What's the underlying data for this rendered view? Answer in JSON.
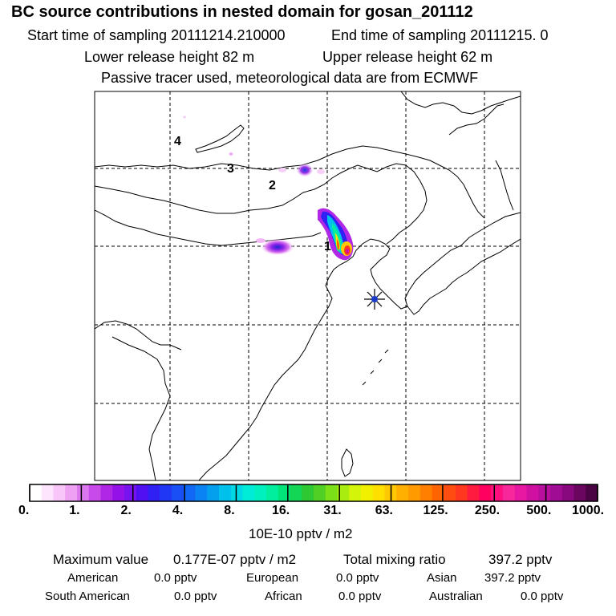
{
  "header": {
    "title": "BC  source contributions in nested domain for gosan_201112",
    "start_label": "Start time of sampling 20111214.210000",
    "end_label": "End time of sampling 20111215.     0",
    "lower_label": "Lower release height   82 m",
    "upper_label": "Upper release height   62 m",
    "tracer_label": "Passive tracer used, meteorological data are from ECMWF"
  },
  "map": {
    "trajectory_labels": [
      "4",
      "3",
      "2",
      "1"
    ],
    "receptor_marker": "star-marker",
    "colors": {
      "coast": "#000000",
      "grid": "#000000",
      "receptor": "#1a3cc8"
    }
  },
  "colorbar": {
    "tick_labels": [
      "0.",
      "1.",
      "2.",
      "4.",
      "8.",
      "16.",
      "31.",
      "63.",
      "125.",
      "250.",
      "500.",
      "1000."
    ],
    "colors": [
      "#ffffff",
      "#fde6fd",
      "#f8c6f9",
      "#eea0f3",
      "#dc78ee",
      "#c84ae8",
      "#b028e6",
      "#9412e8",
      "#7812ee",
      "#5010f2",
      "#3020f4",
      "#2038f6",
      "#1850f6",
      "#1068f4",
      "#0a84f2",
      "#04a0ee",
      "#00c0ec",
      "#00d8e6",
      "#00ecd8",
      "#00f0c0",
      "#00ee9e",
      "#00e47a",
      "#12d654",
      "#2ec832",
      "#50d024",
      "#7ce018",
      "#a8ec10",
      "#d4f40a",
      "#f0f000",
      "#ffe000",
      "#ffc800",
      "#ffb000",
      "#ff9a00",
      "#ff8000",
      "#ff6400",
      "#ff4c10",
      "#ff3620",
      "#ff1a40",
      "#ff0060",
      "#ff1080",
      "#f8289a",
      "#e818a2",
      "#d010a0",
      "#b8109c",
      "#a00c94",
      "#88087e",
      "#6a0660",
      "#4a0444"
    ],
    "unit": "10E-10 pptv / m2"
  },
  "summary": {
    "max_label": "Maximum value",
    "max_value": "0.177E-07 pptv / m2",
    "total_label": "Total mixing ratio",
    "total_value": "397.2 pptv"
  },
  "regions": [
    {
      "name": "American",
      "value": "0.0 pptv"
    },
    {
      "name": "European",
      "value": "0.0 pptv"
    },
    {
      "name": "Asian",
      "value": "397.2 pptv"
    },
    {
      "name": "South American",
      "value": "0.0 pptv"
    },
    {
      "name": "African",
      "value": "0.0 pptv"
    },
    {
      "name": "Australian",
      "value": "0.0 pptv"
    }
  ]
}
